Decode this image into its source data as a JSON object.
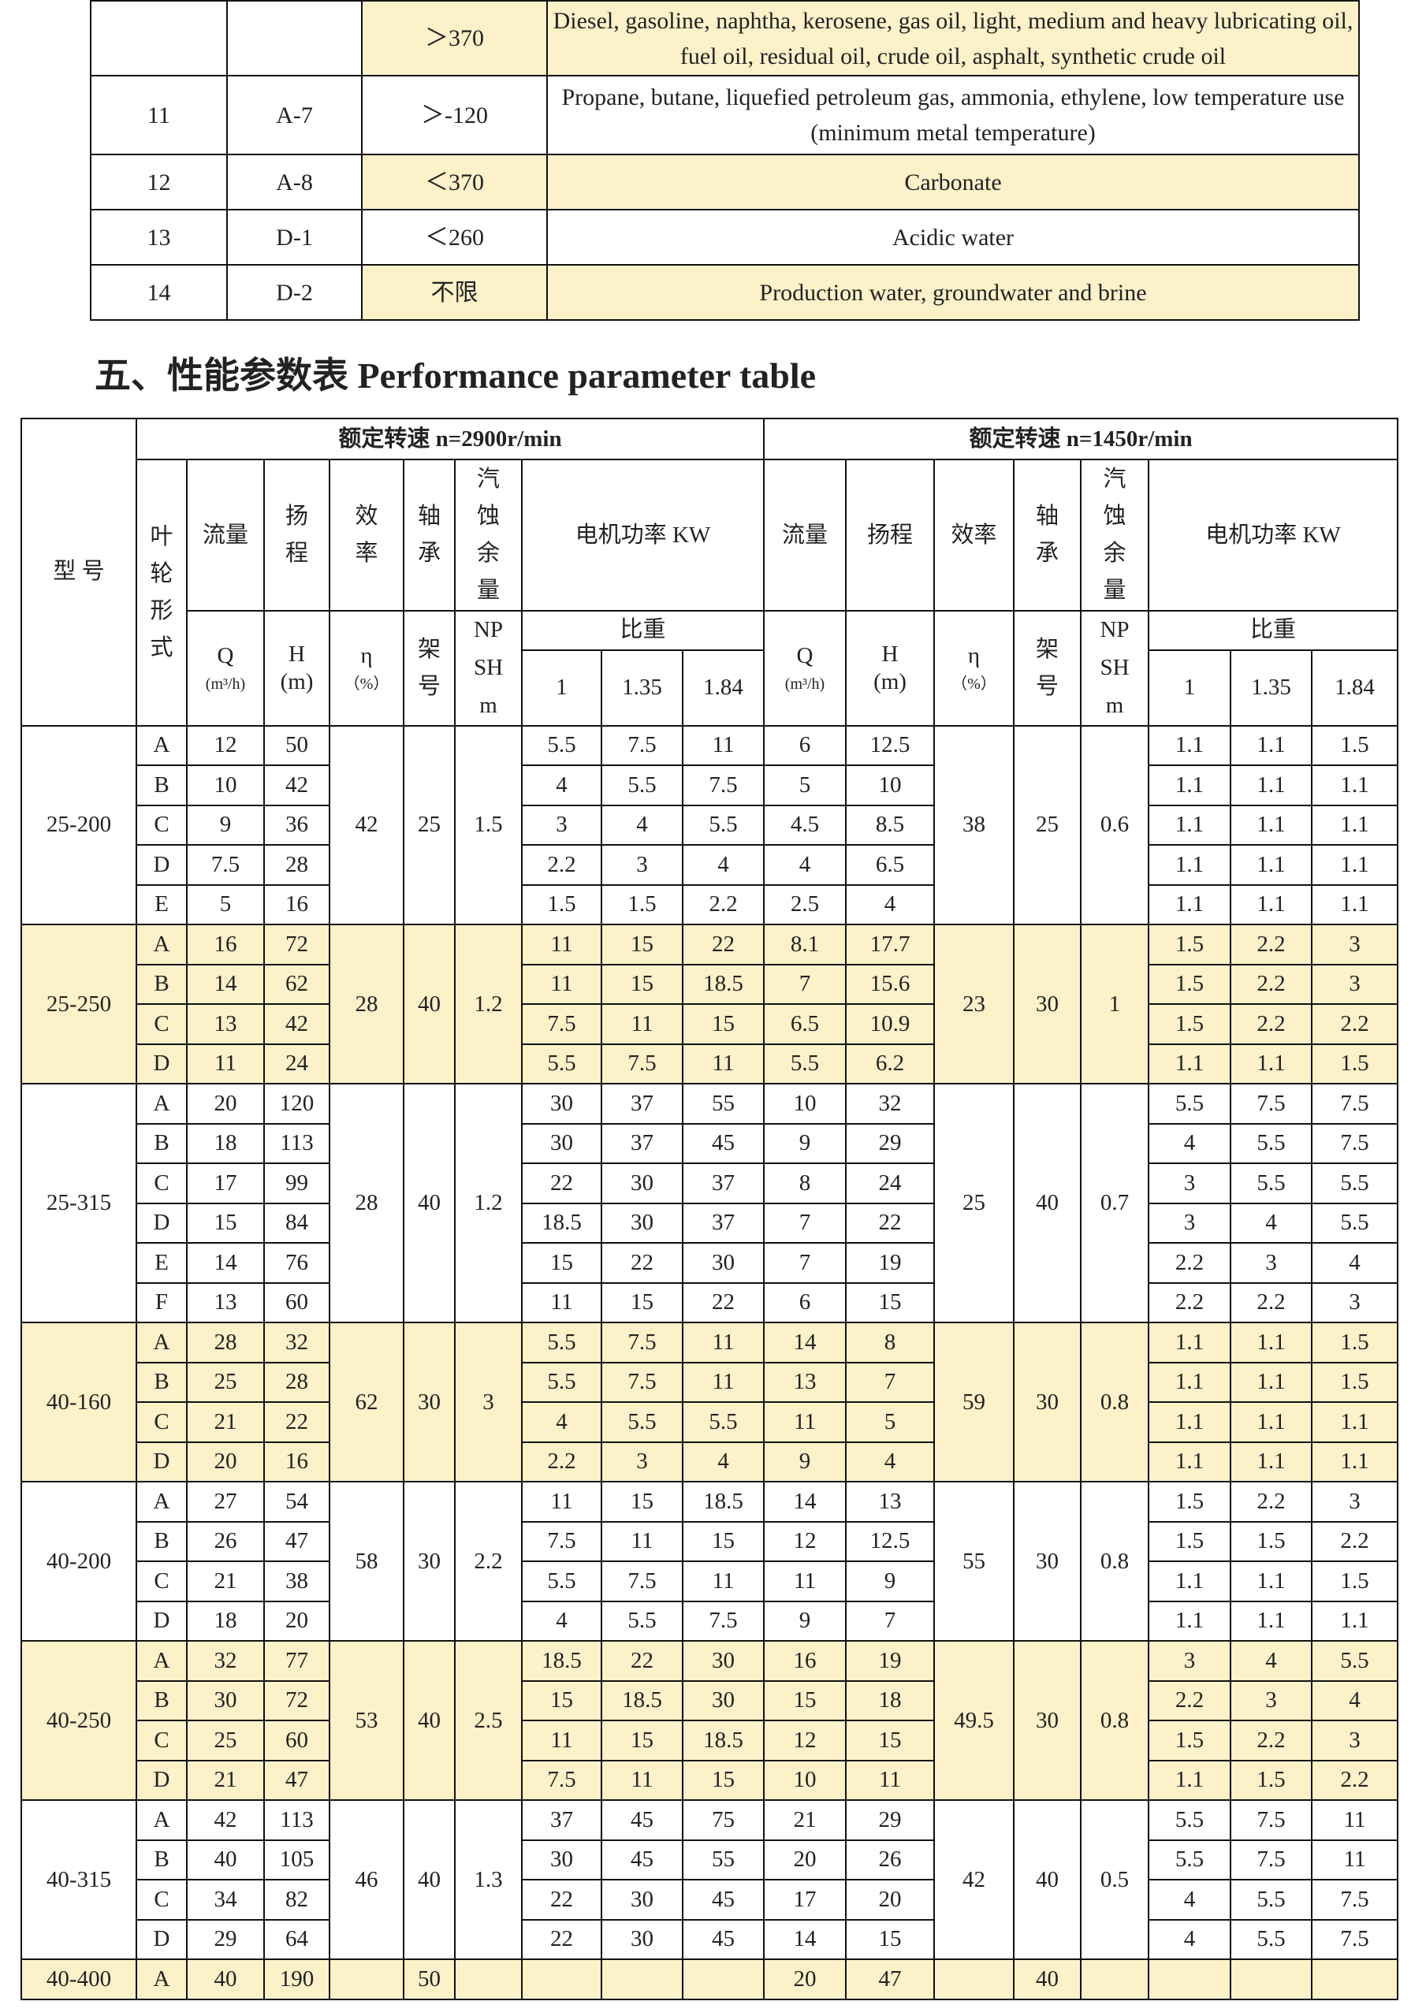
{
  "top_table": {
    "rows": [
      [
        null,
        null,
        "＞370",
        "Diesel, gasoline, naphtha, kerosene, gas oil, light, medium and heavy lubricating oil, fuel oil, residual oil, crude oil, asphalt, synthetic crude oil"
      ],
      [
        "11",
        "A-7",
        "＞-120",
        "Propane, butane, liquefied petroleum gas, ammonia, ethylene, low temperature use (minimum metal temperature)"
      ],
      [
        "12",
        "A-8",
        "＜370",
        "Carbonate"
      ],
      [
        "13",
        "D-1",
        "＜260",
        "Acidic water"
      ],
      [
        "14",
        "D-2",
        "不限",
        "Production water, groundwater and brine"
      ]
    ]
  },
  "section_heading": "五、性能参数表 Performance parameter table",
  "perf_table": {
    "header": {
      "model": "型 号",
      "speed_2900": "额定转速 n=2900r/min",
      "speed_1450": "额定转速 n=1450r/min",
      "impeller": "叶轮形式",
      "flow": "流量",
      "head": "扬程",
      "efficiency": "效率",
      "bearing": "轴承",
      "npsh": "汽蚀余量",
      "motor_power": "电机功率 KW",
      "flow_symbol": "Q",
      "flow_unit": "(m³/h)",
      "head_symbol": "H",
      "head_unit": "(m)",
      "efficiency_symbol": "η",
      "efficiency_unit": "（%）",
      "bearing_no": "架号",
      "npsh_symbol": "NPSHm",
      "specific_gravity": "比重",
      "sg_values": [
        1,
        1.35,
        1.84
      ]
    },
    "groups": [
      {
        "model": "25-200",
        "s2900": {
          "efficiency": 42,
          "bearing": 25,
          "npsh": 1.5
        },
        "s1450": {
          "efficiency": 38,
          "bearing": 25,
          "npsh": 0.6
        },
        "rows": [
          {
            "impeller": "A",
            "q": 12,
            "h": 50,
            "power": [
              5.5,
              7.5,
              11
            ],
            "q2": 6,
            "h2": 12.5,
            "power2": [
              1.1,
              1.1,
              1.5
            ]
          },
          {
            "impeller": "B",
            "q": 10,
            "h": 42,
            "power": [
              4,
              5.5,
              7.5
            ],
            "q2": 5,
            "h2": 10,
            "power2": [
              1.1,
              1.1,
              1.1
            ]
          },
          {
            "impeller": "C",
            "q": 9,
            "h": 36,
            "power": [
              3,
              4,
              5.5
            ],
            "q2": 4.5,
            "h2": 8.5,
            "power2": [
              1.1,
              1.1,
              1.1
            ]
          },
          {
            "impeller": "D",
            "q": 7.5,
            "h": 28,
            "power": [
              2.2,
              3,
              4
            ],
            "q2": 4,
            "h2": 6.5,
            "power2": [
              1.1,
              1.1,
              1.1
            ]
          },
          {
            "impeller": "E",
            "q": 5,
            "h": 16,
            "power": [
              1.5,
              1.5,
              2.2
            ],
            "q2": 2.5,
            "h2": 4,
            "power2": [
              1.1,
              1.1,
              1.1
            ]
          }
        ]
      },
      {
        "model": "25-250",
        "s2900": {
          "efficiency": 28,
          "bearing": 40,
          "npsh": 1.2
        },
        "s1450": {
          "efficiency": 23,
          "bearing": 30,
          "npsh": 1
        },
        "rows": [
          {
            "impeller": "A",
            "q": 16,
            "h": 72,
            "power": [
              11,
              15,
              22
            ],
            "q2": 8.1,
            "h2": 17.7,
            "power2": [
              1.5,
              2.2,
              3
            ]
          },
          {
            "impeller": "B",
            "q": 14,
            "h": 62,
            "power": [
              11,
              15,
              18.5
            ],
            "q2": 7,
            "h2": 15.6,
            "power2": [
              1.5,
              2.2,
              3
            ]
          },
          {
            "impeller": "C",
            "q": 13,
            "h": 42,
            "power": [
              7.5,
              11,
              15
            ],
            "q2": 6.5,
            "h2": 10.9,
            "power2": [
              1.5,
              2.2,
              2.2
            ]
          },
          {
            "impeller": "D",
            "q": 11,
            "h": 24,
            "power": [
              5.5,
              7.5,
              11
            ],
            "q2": 5.5,
            "h2": 6.2,
            "power2": [
              1.1,
              1.1,
              1.5
            ]
          }
        ]
      },
      {
        "model": "25-315",
        "s2900": {
          "efficiency": 28,
          "bearing": 40,
          "npsh": 1.2
        },
        "s1450": {
          "efficiency": 25,
          "bearing": 40,
          "npsh": 0.7
        },
        "rows": [
          {
            "impeller": "A",
            "q": 20,
            "h": 120,
            "power": [
              30,
              37,
              55
            ],
            "q2": 10,
            "h2": 32,
            "power2": [
              5.5,
              7.5,
              7.5
            ]
          },
          {
            "impeller": "B",
            "q": 18,
            "h": 113,
            "power": [
              30,
              37,
              45
            ],
            "q2": 9,
            "h2": 29,
            "power2": [
              4,
              5.5,
              7.5
            ]
          },
          {
            "impeller": "C",
            "q": 17,
            "h": 99,
            "power": [
              22,
              30,
              37
            ],
            "q2": 8,
            "h2": 24,
            "power2": [
              3,
              5.5,
              5.5
            ]
          },
          {
            "impeller": "D",
            "q": 15,
            "h": 84,
            "power": [
              18.5,
              30,
              37
            ],
            "q2": 7,
            "h2": 22,
            "power2": [
              3,
              4,
              5.5
            ]
          },
          {
            "impeller": "E",
            "q": 14,
            "h": 76,
            "power": [
              15,
              22,
              30
            ],
            "q2": 7,
            "h2": 19,
            "power2": [
              2.2,
              3,
              4
            ]
          },
          {
            "impeller": "F",
            "q": 13,
            "h": 60,
            "power": [
              11,
              15,
              22
            ],
            "q2": 6,
            "h2": 15,
            "power2": [
              2.2,
              2.2,
              3
            ]
          }
        ]
      },
      {
        "model": "40-160",
        "s2900": {
          "efficiency": 62,
          "bearing": 30,
          "npsh": 3
        },
        "s1450": {
          "efficiency": 59,
          "bearing": 30,
          "npsh": 0.8
        },
        "rows": [
          {
            "impeller": "A",
            "q": 28,
            "h": 32,
            "power": [
              5.5,
              7.5,
              11
            ],
            "q2": 14,
            "h2": 8,
            "power2": [
              1.1,
              1.1,
              1.5
            ]
          },
          {
            "impeller": "B",
            "q": 25,
            "h": 28,
            "power": [
              5.5,
              7.5,
              11
            ],
            "q2": 13,
            "h2": 7,
            "power2": [
              1.1,
              1.1,
              1.5
            ]
          },
          {
            "impeller": "C",
            "q": 21,
            "h": 22,
            "power": [
              4,
              5.5,
              5.5
            ],
            "q2": 11,
            "h2": 5,
            "power2": [
              1.1,
              1.1,
              1.1
            ]
          },
          {
            "impeller": "D",
            "q": 20,
            "h": 16,
            "power": [
              2.2,
              3,
              4
            ],
            "q2": 9,
            "h2": 4,
            "power2": [
              1.1,
              1.1,
              1.1
            ]
          }
        ]
      },
      {
        "model": "40-200",
        "s2900": {
          "efficiency": 58,
          "bearing": 30,
          "npsh": 2.2
        },
        "s1450": {
          "efficiency": 55,
          "bearing": 30,
          "npsh": 0.8
        },
        "rows": [
          {
            "impeller": "A",
            "q": 27,
            "h": 54,
            "power": [
              11,
              15,
              18.5
            ],
            "q2": 14,
            "h2": 13,
            "power2": [
              1.5,
              2.2,
              3
            ]
          },
          {
            "impeller": "B",
            "q": 26,
            "h": 47,
            "power": [
              7.5,
              11,
              15
            ],
            "q2": 12,
            "h2": 12.5,
            "power2": [
              1.5,
              1.5,
              2.2
            ]
          },
          {
            "impeller": "C",
            "q": 21,
            "h": 38,
            "power": [
              5.5,
              7.5,
              11
            ],
            "q2": 11,
            "h2": 9,
            "power2": [
              1.1,
              1.1,
              1.5
            ]
          },
          {
            "impeller": "D",
            "q": 18,
            "h": 20,
            "power": [
              4,
              5.5,
              7.5
            ],
            "q2": 9,
            "h2": 7,
            "power2": [
              1.1,
              1.1,
              1.1
            ]
          }
        ]
      },
      {
        "model": "40-250",
        "s2900": {
          "efficiency": 53,
          "bearing": 40,
          "npsh": 2.5
        },
        "s1450": {
          "efficiency": 49.5,
          "bearing": 30,
          "npsh": 0.8
        },
        "rows": [
          {
            "impeller": "A",
            "q": 32,
            "h": 77,
            "power": [
              18.5,
              22,
              30
            ],
            "q2": 16,
            "h2": 19,
            "power2": [
              3,
              4,
              5.5
            ]
          },
          {
            "impeller": "B",
            "q": 30,
            "h": 72,
            "power": [
              15,
              18.5,
              30
            ],
            "q2": 15,
            "h2": 18,
            "power2": [
              2.2,
              3,
              4
            ]
          },
          {
            "impeller": "C",
            "q": 25,
            "h": 60,
            "power": [
              11,
              15,
              18.5
            ],
            "q2": 12,
            "h2": 15,
            "power2": [
              1.5,
              2.2,
              3
            ]
          },
          {
            "impeller": "D",
            "q": 21,
            "h": 47,
            "power": [
              7.5,
              11,
              15
            ],
            "q2": 10,
            "h2": 11,
            "power2": [
              1.1,
              1.5,
              2.2
            ]
          }
        ]
      },
      {
        "model": "40-315",
        "s2900": {
          "efficiency": 46,
          "bearing": 40,
          "npsh": 1.3
        },
        "s1450": {
          "efficiency": 42,
          "bearing": 40,
          "npsh": 0.5
        },
        "rows": [
          {
            "impeller": "A",
            "q": 42,
            "h": 113,
            "power": [
              37,
              45,
              75
            ],
            "q2": 21,
            "h2": 29,
            "power2": [
              5.5,
              7.5,
              11
            ]
          },
          {
            "impeller": "B",
            "q": 40,
            "h": 105,
            "power": [
              30,
              45,
              55
            ],
            "q2": 20,
            "h2": 26,
            "power2": [
              5.5,
              7.5,
              11
            ]
          },
          {
            "impeller": "C",
            "q": 34,
            "h": 82,
            "power": [
              22,
              30,
              45
            ],
            "q2": 17,
            "h2": 20,
            "power2": [
              4,
              5.5,
              7.5
            ]
          },
          {
            "impeller": "D",
            "q": 29,
            "h": 64,
            "power": [
              22,
              30,
              45
            ],
            "q2": 14,
            "h2": 15,
            "power2": [
              4,
              5.5,
              7.5
            ]
          }
        ]
      },
      {
        "model": "40-400",
        "s2900": {
          "efficiency": null,
          "bearing": 50,
          "npsh": null
        },
        "s1450": {
          "efficiency": null,
          "bearing": 40,
          "npsh": null
        },
        "rows": [
          {
            "impeller": "A",
            "q": 40,
            "h": 190,
            "power": [
              null,
              null,
              null
            ],
            "q2": 20,
            "h2": 47,
            "power2": [
              null,
              null,
              null
            ]
          }
        ]
      }
    ]
  }
}
